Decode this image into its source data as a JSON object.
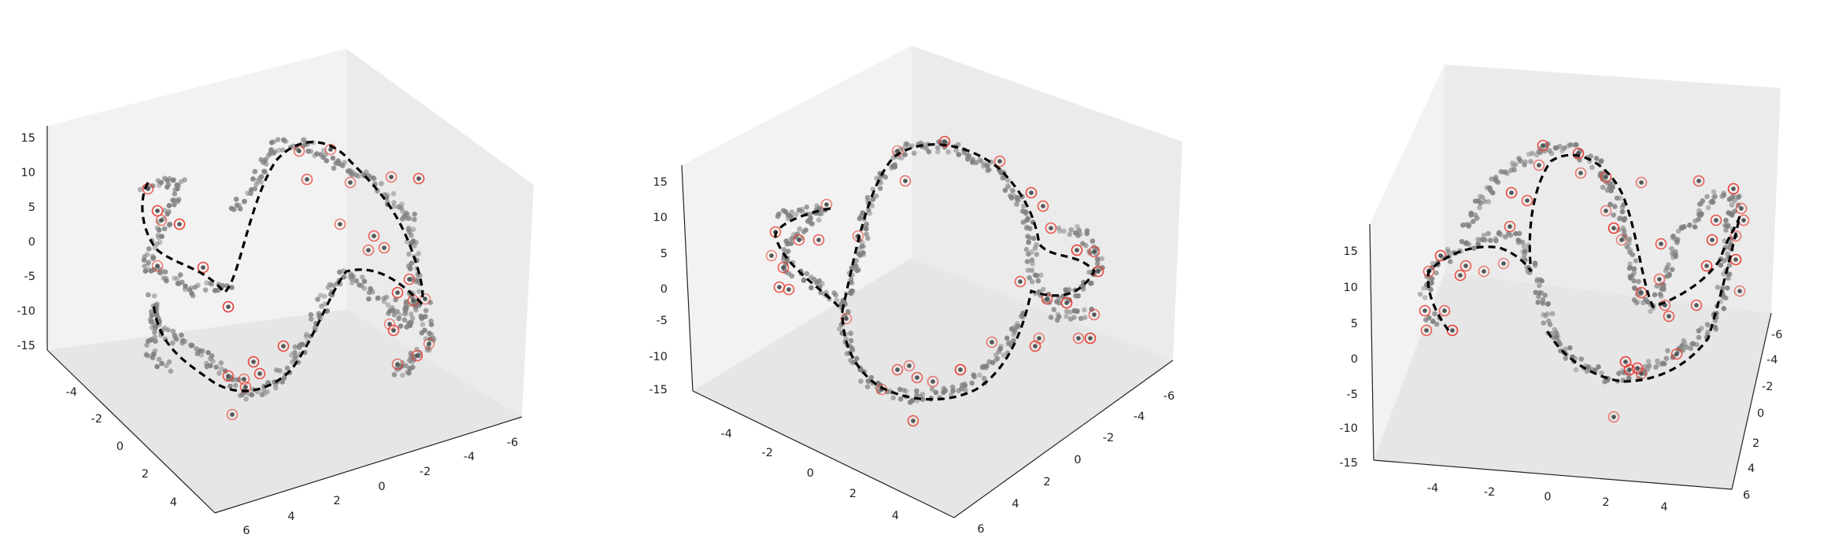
{
  "chart_data": [
    {
      "type": "scatter",
      "projection": "3d",
      "title": "",
      "xlabel": "",
      "ylabel": "",
      "zlabel": "",
      "x_ticks": [
        "6",
        "4",
        "2",
        "0",
        "-2",
        "-4",
        "-6"
      ],
      "y_ticks": [
        "-4",
        "-2",
        "0",
        "2",
        "4"
      ],
      "z_ticks": [
        "15",
        "10",
        "5",
        "0",
        "-5",
        "-10",
        "-15"
      ],
      "xlim": [
        -7,
        7
      ],
      "ylim": [
        -5,
        5
      ],
      "zlim": [
        -15,
        16
      ],
      "grid": true,
      "series": [
        {
          "values": "noisy 3D curve samples (grey points)",
          "color": "#7f7f7f"
        },
        {
          "values": "sampled subset (red rings)",
          "color": "#e8392f"
        },
        {
          "values": "fitted curve (black dashed)",
          "color": "#000000"
        }
      ]
    },
    {
      "type": "scatter",
      "projection": "3d",
      "title": "",
      "xlabel": "",
      "ylabel": "",
      "zlabel": "",
      "x_ticks": [
        "6",
        "4",
        "2",
        "0",
        "-2",
        "-4",
        "-6"
      ],
      "y_ticks": [
        "-4",
        "-2",
        "0",
        "2",
        "4"
      ],
      "z_ticks": [
        "15",
        "10",
        "5",
        "0",
        "-5",
        "-10",
        "-15"
      ],
      "xlim": [
        -7,
        7
      ],
      "ylim": [
        -5,
        5
      ],
      "zlim": [
        -15,
        16
      ],
      "grid": true,
      "series": [
        {
          "values": "noisy 3D curve samples (grey points)",
          "color": "#7f7f7f"
        },
        {
          "values": "sampled subset (red rings)",
          "color": "#e8392f"
        },
        {
          "values": "fitted curve (black dashed)",
          "color": "#000000"
        }
      ]
    },
    {
      "type": "scatter",
      "projection": "3d",
      "title": "",
      "xlabel": "",
      "ylabel": "",
      "zlabel": "",
      "x_ticks": [
        "-4",
        "-2",
        "0",
        "2",
        "4"
      ],
      "y_ticks": [
        "6",
        "4",
        "2",
        "0",
        "-2",
        "-4",
        "-6"
      ],
      "z_ticks": [
        "15",
        "10",
        "5",
        "0",
        "-5",
        "-10",
        "-15"
      ],
      "xlim": [
        -5,
        5
      ],
      "ylim": [
        -7,
        7
      ],
      "zlim": [
        -15,
        16
      ],
      "grid": true,
      "series": [
        {
          "values": "noisy 3D curve samples (grey points)",
          "color": "#7f7f7f"
        },
        {
          "values": "sampled subset (red rings)",
          "color": "#e8392f"
        },
        {
          "values": "fitted curve (black dashed)",
          "color": "#000000"
        }
      ]
    }
  ]
}
